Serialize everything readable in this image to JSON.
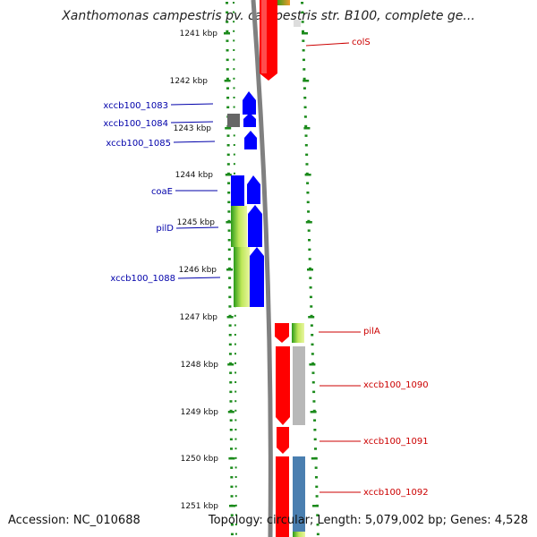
{
  "title": "Xanthomonas campestris pv. campestris str. B100, complete ge...",
  "footer": {
    "accession": "Accession: NC_010688",
    "summary": "Topology: circular; Length: 5,079,002 bp; Genes: 4,528"
  },
  "ruler": {
    "ticks": [
      {
        "kbp": 1241,
        "label": "1241 kbp"
      },
      {
        "kbp": 1242,
        "label": "1242 kbp"
      },
      {
        "kbp": 1243,
        "label": "1243 kbp"
      },
      {
        "kbp": 1244,
        "label": "1244 kbp"
      },
      {
        "kbp": 1245,
        "label": "1245 kbp"
      },
      {
        "kbp": 1246,
        "label": "1246 kbp"
      },
      {
        "kbp": 1247,
        "label": "1247 kbp"
      },
      {
        "kbp": 1248,
        "label": "1248 kbp"
      },
      {
        "kbp": 1249,
        "label": "1249 kbp"
      },
      {
        "kbp": 1250,
        "label": "1250 kbp"
      },
      {
        "kbp": 1251,
        "label": "1251 kbp"
      }
    ]
  },
  "genes_left": [
    {
      "name": "xccb100_1083",
      "label_color": "#0000aa"
    },
    {
      "name": "xccb100_1084",
      "label_color": "#0000aa"
    },
    {
      "name": "xccb100_1085",
      "label_color": "#0000aa"
    },
    {
      "name": "coaE",
      "label_color": "#0000aa"
    },
    {
      "name": "pilD",
      "label_color": "#0000aa"
    },
    {
      "name": "xccb100_1088",
      "label_color": "#0000aa"
    }
  ],
  "genes_right": [
    {
      "name": "colS",
      "label_color": "#cc0000"
    },
    {
      "name": "pilA",
      "label_color": "#cc0000"
    },
    {
      "name": "xccb100_1090",
      "label_color": "#cc0000"
    },
    {
      "name": "xccb100_1091",
      "label_color": "#cc0000"
    },
    {
      "name": "xccb100_1092",
      "label_color": "#cc0000"
    }
  ],
  "colors": {
    "forward_gene": "#0000ff",
    "reverse_gene": "#ff0000",
    "backbone": "#808080",
    "dotted_track": "#1a8a1a",
    "tick": "#1a8a1a",
    "gray_block": "#666666",
    "light_gray_block": "#b8b8b8",
    "steel_blue_block": "#4a7fb0",
    "gradient_green": "#33aa22",
    "gradient_yellow": "#ccee55"
  }
}
